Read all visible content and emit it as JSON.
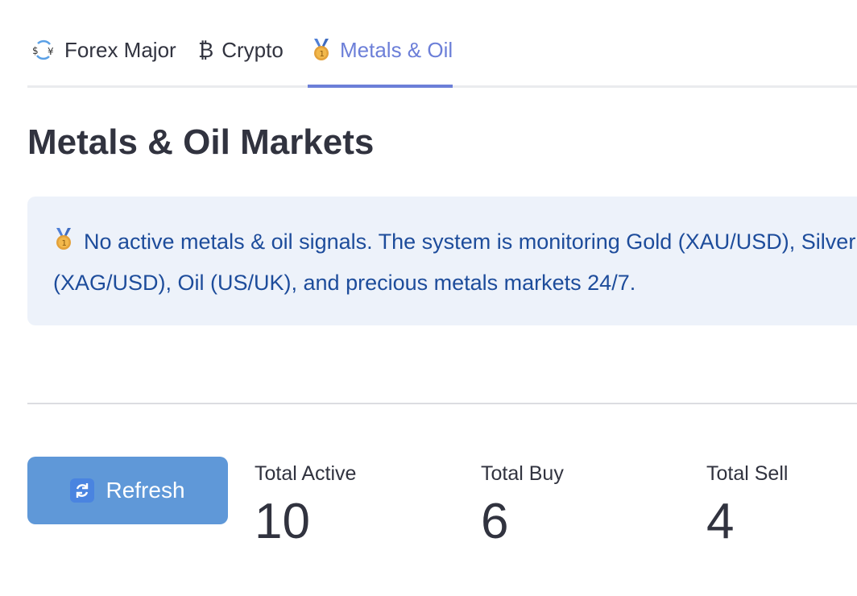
{
  "tabs": [
    {
      "label": "Forex Major",
      "icon": "currency-exchange-icon",
      "active": false
    },
    {
      "label": "Crypto",
      "icon": "bitcoin-icon",
      "active": false
    },
    {
      "label": "Metals & Oil",
      "icon": "medal-icon",
      "active": true
    }
  ],
  "page": {
    "title": "Metals & Oil Markets"
  },
  "info": {
    "icon": "medal-icon",
    "message": "No active metals & oil signals. The system is monitoring Gold (XAU/USD), Silver (XAG/USD), Oil (US/UK), and precious metals markets 24/7."
  },
  "actions": {
    "refresh_label": "Refresh",
    "refresh_icon": "refresh-icon"
  },
  "metrics": [
    {
      "label": "Total Active",
      "value": "10"
    },
    {
      "label": "Total Buy",
      "value": "6"
    },
    {
      "label": "Total Sell",
      "value": "4"
    }
  ],
  "colors": {
    "accent": "#6c7fd8",
    "info_bg": "#edf2fa",
    "info_text": "#1d4c9b",
    "button_bg": "#5f98d8"
  }
}
